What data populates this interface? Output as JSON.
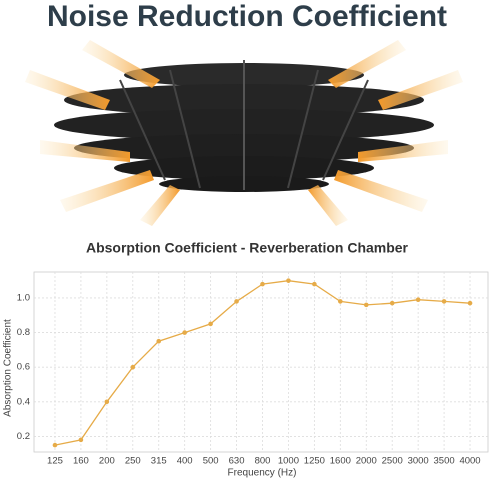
{
  "title": "Noise Reduction Coefficient",
  "chart_data": {
    "type": "line",
    "title": "Absorption Coefficient - Reverberation Chamber",
    "x_label": "Frequency (Hz)",
    "y_label": "Absorption Coefficient",
    "categories": [
      "125",
      "160",
      "200",
      "250",
      "315",
      "400",
      "500",
      "630",
      "800",
      "1000",
      "1250",
      "1600",
      "2000",
      "2500",
      "3000",
      "3500",
      "4000"
    ],
    "values": [
      0.15,
      0.18,
      0.4,
      0.6,
      0.75,
      0.8,
      0.85,
      0.98,
      1.08,
      1.1,
      1.08,
      0.98,
      0.96,
      0.97,
      0.99,
      0.98,
      0.97
    ],
    "color": "#e6ab48",
    "ylim": [
      0.11,
      1.15
    ],
    "yticks": [
      0.2,
      0.4,
      0.6,
      0.8,
      {
        "value": 1,
        "label": "1.0"
      }
    ],
    "grid": true
  }
}
